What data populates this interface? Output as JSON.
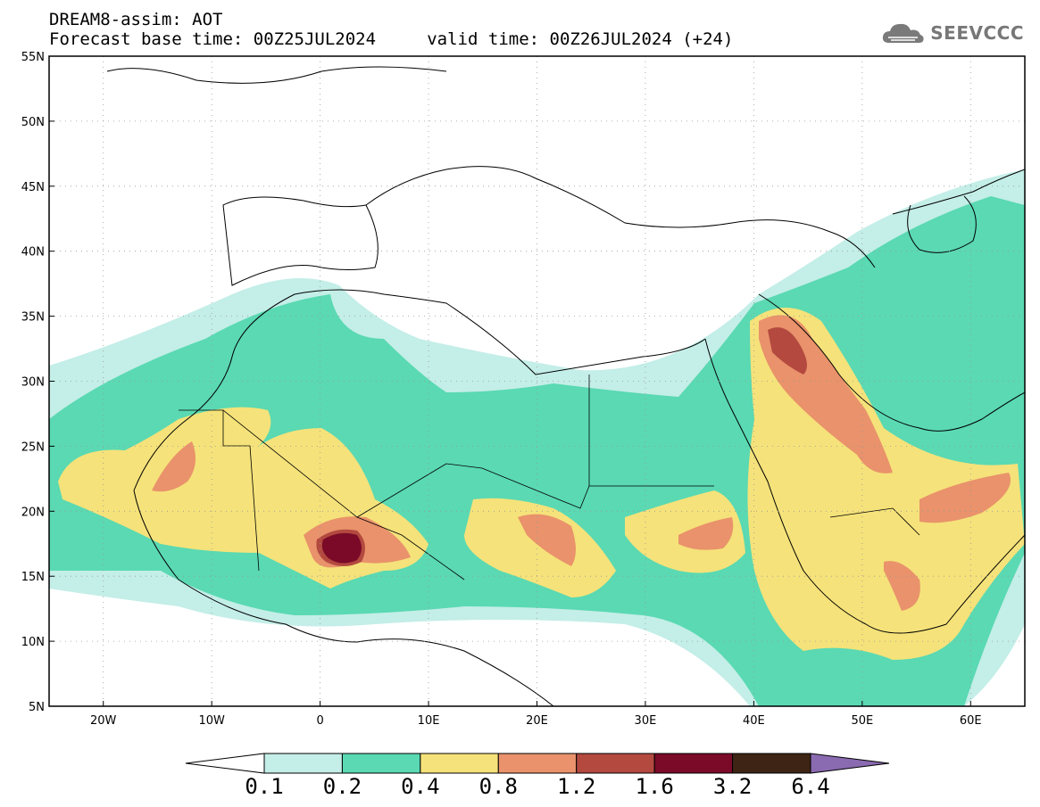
{
  "title": {
    "line1": "DREAM8-assim: AOT",
    "line2": "Forecast base time: 00Z25JUL2024     valid time: 00Z26JUL2024 (+24)"
  },
  "logo": {
    "text": "SEEVCCC",
    "icon": "cloud-icon",
    "color": "#777777"
  },
  "map": {
    "lon_range": [
      -25,
      65
    ],
    "lat_range": [
      5,
      55
    ],
    "lat_labels": [
      "55N",
      "50N",
      "45N",
      "40N",
      "35N",
      "30N",
      "25N",
      "20N",
      "15N",
      "10N",
      "5N"
    ],
    "lon_labels": [
      "20W",
      "10W",
      "0",
      "10E",
      "20E",
      "30E",
      "40E",
      "50E",
      "60E"
    ],
    "grid": "dotted"
  },
  "colorbar": {
    "labels": [
      "0.1",
      "0.2",
      "0.4",
      "0.8",
      "1.2",
      "1.6",
      "3.2",
      "6.4"
    ],
    "colors": [
      "#ffffff",
      "#c4eee8",
      "#5ad9b2",
      "#f5e27a",
      "#e9926b",
      "#b3493f",
      "#7a0a28",
      "#3e2414",
      "#8a6ab0"
    ]
  }
}
